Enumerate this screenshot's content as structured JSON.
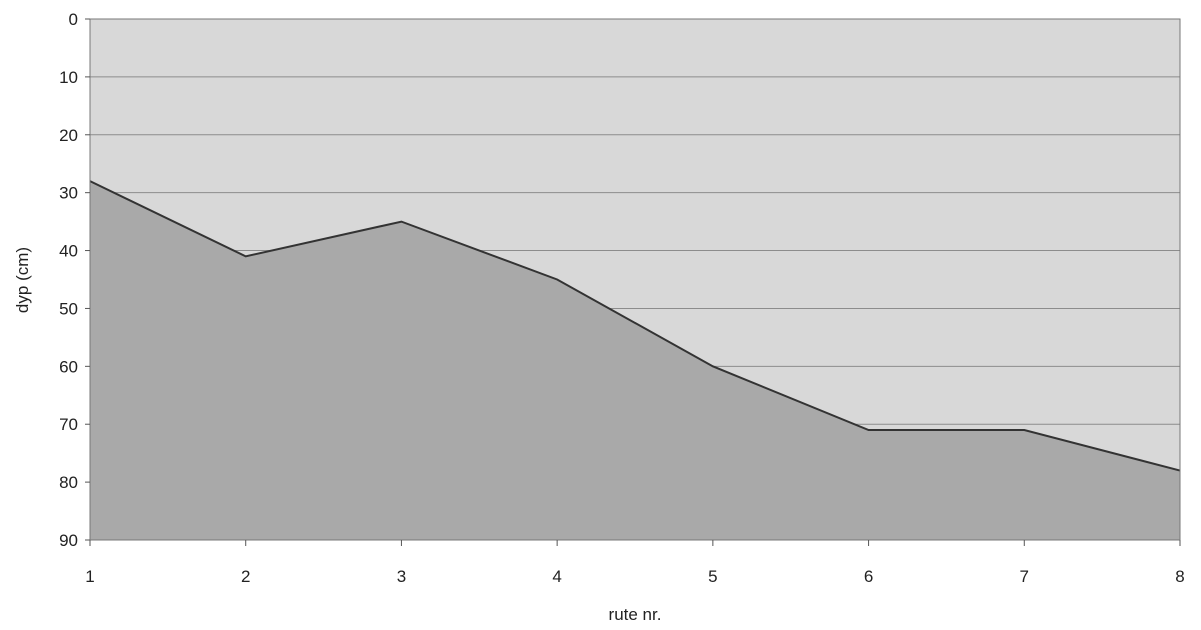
{
  "chart_data": {
    "type": "area",
    "xlabel": "rute nr.",
    "ylabel": "dyp (cm)",
    "x": [
      1,
      2,
      3,
      4,
      5,
      6,
      7,
      8
    ],
    "series": [
      {
        "values": [
          28,
          41,
          35,
          45,
          60,
          71,
          71,
          78
        ]
      }
    ],
    "xlim": [
      1,
      8
    ],
    "ylim": [
      0,
      90
    ],
    "y_inverted": true,
    "x_ticks": [
      "1",
      "2",
      "3",
      "4",
      "5",
      "6",
      "7",
      "8"
    ],
    "y_ticks": [
      "0",
      "10",
      "20",
      "30",
      "40",
      "50",
      "60",
      "70",
      "80",
      "90"
    ],
    "grid": true,
    "colors": {
      "plot_background": "#d8d8d8",
      "area_fill": "#a9a9a9",
      "line": "#333333",
      "gridline": "#8c8c8c"
    }
  }
}
